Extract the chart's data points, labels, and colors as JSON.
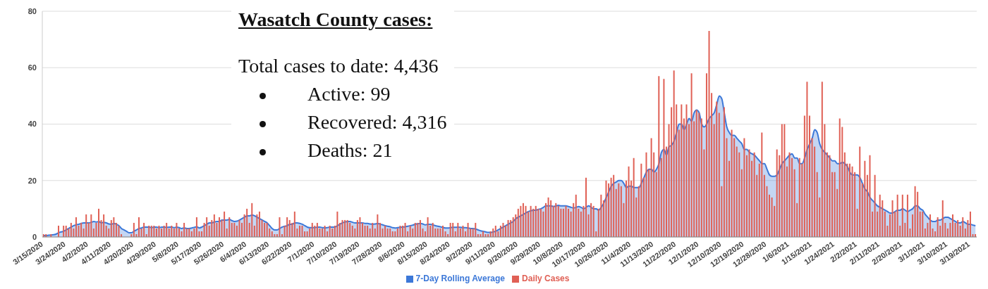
{
  "chart_data": {
    "type": "bar",
    "title": "Wasatch County cases:",
    "annotations": [
      "Total cases to date: 4,436",
      "Active: 99",
      "Recovered: 4,316",
      "Deaths: 21"
    ],
    "categories": [
      "3/15/2020",
      null,
      null,
      null,
      null,
      null,
      null,
      null,
      null,
      "3/24/2020",
      null,
      null,
      null,
      null,
      null,
      null,
      null,
      null,
      "4/2/2020",
      null,
      null,
      null,
      null,
      null,
      null,
      null,
      null,
      "4/11/2020",
      null,
      null,
      null,
      null,
      null,
      null,
      null,
      null,
      "4/20/2020",
      null,
      null,
      null,
      null,
      null,
      null,
      null,
      null,
      "4/29/2020",
      null,
      null,
      null,
      null,
      null,
      null,
      null,
      null,
      "5/8/2020",
      null,
      null,
      null,
      null,
      null,
      null,
      null,
      null,
      "5/17/2020",
      null,
      null,
      null,
      null,
      null,
      null,
      null,
      null,
      "5/26/2020",
      null,
      null,
      null,
      null,
      null,
      null,
      null,
      null,
      "6/4/2020",
      null,
      null,
      null,
      null,
      null,
      null,
      null,
      null,
      "6/13/2020",
      null,
      null,
      null,
      null,
      null,
      null,
      null,
      null,
      "6/22/2020",
      null,
      null,
      null,
      null,
      null,
      null,
      null,
      null,
      "7/1/2020",
      null,
      null,
      null,
      null,
      null,
      null,
      null,
      null,
      "7/10/2020",
      null,
      null,
      null,
      null,
      null,
      null,
      null,
      null,
      "7/19/2020",
      null,
      null,
      null,
      null,
      null,
      null,
      null,
      null,
      "7/28/2020",
      null,
      null,
      null,
      null,
      null,
      null,
      null,
      null,
      "8/6/2020",
      null,
      null,
      null,
      null,
      null,
      null,
      null,
      null,
      "8/15/2020",
      null,
      null,
      null,
      null,
      null,
      null,
      null,
      null,
      "8/24/2020",
      null,
      null,
      null,
      null,
      null,
      null,
      null,
      null,
      "9/2/2020",
      null,
      null,
      null,
      null,
      null,
      null,
      null,
      null,
      "9/11/2020",
      null,
      null,
      null,
      null,
      null,
      null,
      null,
      null,
      "9/20/2020",
      null,
      null,
      null,
      null,
      null,
      null,
      null,
      null,
      "9/29/2020",
      null,
      null,
      null,
      null,
      null,
      null,
      null,
      null,
      "10/8/2020",
      null,
      null,
      null,
      null,
      null,
      null,
      null,
      null,
      "10/17/2020",
      null,
      null,
      null,
      null,
      null,
      null,
      null,
      null,
      "10/26/2020",
      null,
      null,
      null,
      null,
      null,
      null,
      null,
      null,
      "11/4/2020",
      null,
      null,
      null,
      null,
      null,
      null,
      null,
      null,
      "11/13/2020",
      null,
      null,
      null,
      null,
      null,
      null,
      null,
      null,
      "11/22/2020",
      null,
      null,
      null,
      null,
      null,
      null,
      null,
      null,
      "12/1/2020",
      null,
      null,
      null,
      null,
      null,
      null,
      null,
      null,
      "12/10/2020",
      null,
      null,
      null,
      null,
      null,
      null,
      null,
      null,
      "12/19/2020",
      null,
      null,
      null,
      null,
      null,
      null,
      null,
      null,
      "12/28/2020",
      null,
      null,
      null,
      null,
      null,
      null,
      null,
      null,
      "1/6/2021",
      null,
      null,
      null,
      null,
      null,
      null,
      null,
      null,
      "1/15/2021",
      null,
      null,
      null,
      null,
      null,
      null,
      null,
      null,
      "1/24/2021",
      null,
      null,
      null,
      null,
      null,
      null,
      null,
      null,
      "2/2/2021",
      null,
      null,
      null,
      null,
      null,
      null,
      null,
      null,
      "2/11/2021",
      null,
      null,
      null,
      null,
      null,
      null,
      null,
      null,
      "2/20/2021",
      null,
      null,
      null,
      null,
      null,
      null,
      null,
      null,
      "3/1/2021",
      null,
      null,
      null,
      null,
      null,
      null,
      null,
      null,
      "3/10/2021",
      null,
      null,
      null,
      null,
      null,
      null,
      null,
      null,
      "3/19/2021",
      null,
      null
    ],
    "series": [
      {
        "name": "Daily Cases",
        "color": "#e06055",
        "values": [
          1,
          1,
          0,
          1,
          0,
          0,
          4,
          0,
          4,
          4,
          3,
          5,
          3,
          7,
          4,
          5,
          3,
          8,
          5,
          8,
          3,
          5,
          10,
          6,
          8,
          4,
          3,
          6,
          7,
          5,
          4,
          1,
          0,
          0,
          0,
          1,
          5,
          1,
          7,
          3,
          5,
          1,
          4,
          4,
          4,
          3,
          4,
          3,
          4,
          5,
          3,
          4,
          3,
          5,
          3,
          2,
          5,
          3,
          3,
          2,
          3,
          7,
          2,
          2,
          5,
          7,
          4,
          6,
          8,
          5,
          7,
          6,
          9,
          3,
          7,
          5,
          5,
          4,
          6,
          5,
          8,
          10,
          5,
          12,
          4,
          8,
          9,
          6,
          5,
          5,
          3,
          2,
          1,
          1,
          7,
          1,
          4,
          7,
          6,
          5,
          9,
          3,
          4,
          4,
          2,
          2,
          3,
          5,
          4,
          5,
          3,
          3,
          4,
          2,
          4,
          3,
          4,
          9,
          5,
          6,
          6,
          6,
          5,
          4,
          3,
          6,
          7,
          5,
          4,
          4,
          3,
          5,
          3,
          8,
          5,
          3,
          4,
          3,
          3,
          2,
          2,
          3,
          4,
          4,
          5,
          2,
          4,
          3,
          5,
          5,
          6,
          3,
          2,
          7,
          4,
          5,
          3,
          3,
          3,
          4,
          2,
          1,
          5,
          5,
          2,
          5,
          3,
          4,
          2,
          5,
          3,
          3,
          5,
          1,
          1,
          2,
          1,
          1,
          2,
          3,
          4,
          2,
          4,
          5,
          4,
          6,
          6,
          7,
          8,
          10,
          11,
          12,
          11,
          9,
          11,
          10,
          11,
          10,
          10,
          9,
          12,
          14,
          13,
          11,
          12,
          11,
          10,
          10,
          11,
          10,
          9,
          12,
          15,
          10,
          9,
          11,
          21,
          8,
          12,
          11,
          2,
          10,
          15,
          13,
          20,
          19,
          21,
          22,
          17,
          19,
          18,
          12,
          20,
          25,
          20,
          28,
          14,
          18,
          26,
          21,
          30,
          24,
          35,
          30,
          23,
          57,
          28,
          56,
          32,
          40,
          46,
          59,
          47,
          38,
          47,
          42,
          47,
          40,
          58,
          41,
          45,
          44,
          42,
          31,
          58,
          73,
          51,
          40,
          48,
          44,
          18,
          46,
          35,
          27,
          38,
          35,
          32,
          30,
          24,
          35,
          29,
          31,
          27,
          30,
          22,
          26,
          37,
          22,
          18,
          15,
          14,
          11,
          31,
          29,
          40,
          40,
          25,
          30,
          28,
          24,
          12,
          28,
          26,
          43,
          55,
          43,
          35,
          32,
          23,
          14,
          55,
          40,
          30,
          29,
          23,
          23,
          17,
          42,
          39,
          30,
          26,
          26,
          25,
          23,
          10,
          32,
          19,
          27,
          22,
          29,
          9,
          22,
          9,
          15,
          13,
          9,
          4,
          8,
          13,
          9,
          15,
          4,
          15,
          5,
          15,
          3,
          8,
          18,
          16,
          9,
          9,
          3,
          5,
          8,
          3,
          2,
          7,
          4,
          13,
          5,
          3,
          5,
          8,
          5,
          6,
          4,
          7,
          3,
          6,
          9,
          1,
          1
        ]
      },
      {
        "name": "7-Day Rolling Average",
        "type": "area",
        "color": "#3c78d8",
        "values": [
          0.5,
          0.5,
          0.6,
          0.7,
          0.8,
          1,
          1.5,
          1.8,
          2,
          2.5,
          3,
          3.5,
          4,
          4.3,
          4.5,
          4.8,
          5,
          5,
          5,
          5.2,
          5.5,
          5.3,
          5.5,
          5,
          5.2,
          5,
          4.6,
          4.5,
          4.8,
          4.5,
          4,
          3,
          2.5,
          2,
          1.5,
          1.5,
          2,
          2.5,
          3,
          3.2,
          3.5,
          3.5,
          3.5,
          3.3,
          3.5,
          3.5,
          3.3,
          3.5,
          3.5,
          3.4,
          3.5,
          3.5,
          3.3,
          3.5,
          3.3,
          3,
          3.2,
          3,
          3,
          3.2,
          3.4,
          3.6,
          3.2,
          3.5,
          4,
          4.5,
          5,
          5,
          5.3,
          5.5,
          5.5,
          6,
          6,
          6,
          6.2,
          5.8,
          5.5,
          5.6,
          6,
          6.5,
          7,
          7.5,
          7.5,
          7.8,
          7.5,
          7,
          6.5,
          6,
          5.5,
          5,
          4,
          3,
          2.5,
          2.5,
          3,
          3.5,
          3.8,
          4,
          4.5,
          4.5,
          5,
          5,
          4.8,
          4.5,
          4,
          3.5,
          3.3,
          3.3,
          3.3,
          3.5,
          3.5,
          3.3,
          3.2,
          3.3,
          3.5,
          3.5,
          3.5,
          4,
          4.5,
          5,
          5.3,
          5.5,
          5.5,
          5.2,
          5,
          5,
          5,
          5,
          4.8,
          4.8,
          4.6,
          4.5,
          4.6,
          4.8,
          4.5,
          4.3,
          4,
          3.8,
          3.6,
          3.3,
          3.2,
          3.3,
          3.4,
          3.5,
          3.6,
          3.8,
          4,
          4.2,
          4.5,
          4.7,
          4.8,
          4.6,
          4.3,
          4.5,
          4.5,
          4.3,
          4,
          3.8,
          3.6,
          3.4,
          3.2,
          3.2,
          3.3,
          3.4,
          3.4,
          3.5,
          3.4,
          3.3,
          3.3,
          3.2,
          3,
          3,
          2.8,
          2.5,
          2.2,
          2,
          1.8,
          1.6,
          1.6,
          1.8,
          2,
          2.5,
          3,
          3.5,
          4,
          4.5,
          5,
          5.5,
          6.5,
          7,
          7.5,
          8,
          8.5,
          9,
          9.3,
          9.5,
          9.5,
          9.8,
          10,
          10.5,
          11,
          11,
          11,
          10.8,
          11,
          11.2,
          11,
          11,
          11,
          10.8,
          10.5,
          10.3,
          10.5,
          10.8,
          10.5,
          10,
          10.5,
          11,
          10.5,
          10,
          10,
          9.5,
          10.5,
          12,
          14,
          16,
          18,
          19,
          19.5,
          20,
          20,
          19,
          17.5,
          18,
          18,
          17.5,
          17.5,
          17.5,
          19,
          21,
          23,
          24,
          24,
          23,
          24,
          26,
          30,
          31,
          29,
          32,
          32.5,
          34,
          37,
          40,
          40,
          38,
          40,
          42,
          41,
          44,
          45,
          44,
          40,
          39,
          40,
          42,
          43,
          44,
          47,
          50,
          49,
          44,
          39,
          37,
          36,
          36,
          35,
          34,
          33,
          31,
          31,
          30,
          29.5,
          29,
          28,
          27,
          26,
          26,
          24,
          22,
          21.5,
          21.5,
          22,
          24,
          26,
          27,
          28,
          29,
          29.5,
          28,
          28,
          26,
          26,
          28,
          31,
          33,
          35,
          38,
          37,
          33,
          31,
          30,
          29,
          28,
          27,
          27,
          26,
          26,
          26.5,
          26,
          25,
          23,
          22,
          22,
          22,
          21,
          19,
          17,
          16,
          14,
          13,
          12,
          11,
          10.5,
          10,
          9.5,
          9,
          8.5,
          8.5,
          9,
          9.5,
          9.5,
          10,
          9.5,
          9,
          9.5,
          10,
          11,
          11,
          10,
          9.5,
          8,
          7,
          6,
          5.5,
          5.5,
          6,
          6,
          6.5,
          7,
          7,
          6.5,
          6,
          5.5,
          5,
          5,
          5.5,
          5,
          4.5,
          4.5,
          4.2,
          4
        ]
      }
    ],
    "ylim": [
      0,
      80
    ],
    "yticks": [
      0,
      20,
      40,
      60,
      80
    ],
    "grid": "y",
    "legend": "bottom"
  }
}
